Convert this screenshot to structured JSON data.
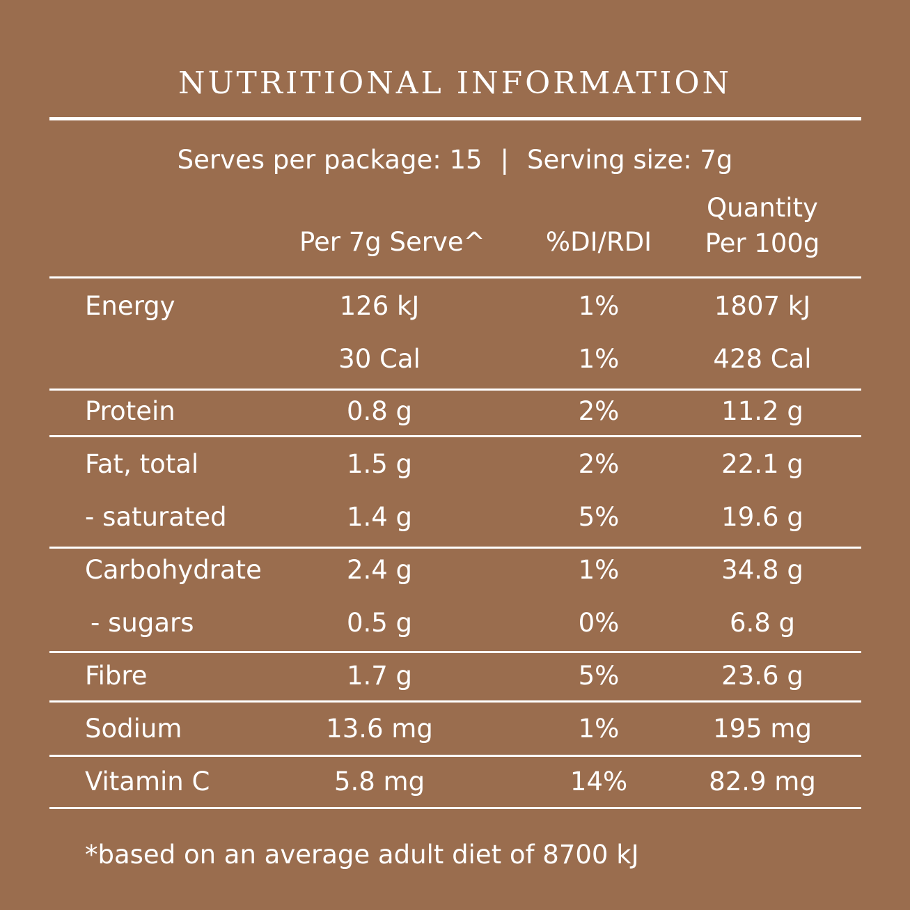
{
  "title": "NUTRITIONAL INFORMATION",
  "serving": {
    "serves": "Serves per package: 15",
    "separator": "|",
    "size": "Serving size: 7g"
  },
  "headers": {
    "per_serve": "Per 7g Serve^",
    "rdi": "%DI/RDI",
    "per100_line1": "Quantity",
    "per100_line2": "Per 100g"
  },
  "rows": [
    {
      "label": "Energy",
      "serve": "126 kJ",
      "rdi": "1%",
      "per100": "1807 kJ"
    },
    {
      "label": "",
      "serve": "30 Cal",
      "rdi": "1%",
      "per100": "428 Cal"
    },
    {
      "label": "Protein",
      "serve": "0.8 g",
      "rdi": "2%",
      "per100": "11.2 g"
    },
    {
      "label": "Fat, total",
      "serve": "1.5 g",
      "rdi": "2%",
      "per100": "22.1 g"
    },
    {
      "label": "- saturated",
      "serve": "1.4 g",
      "rdi": "5%",
      "per100": "19.6 g"
    },
    {
      "label": "Carbohydrate",
      "serve": "2.4 g",
      "rdi": "1%",
      "per100": "34.8 g"
    },
    {
      "label": " - sugars",
      "serve": "0.5 g",
      "rdi": "0%",
      "per100": "6.8 g"
    },
    {
      "label": "Fibre",
      "serve": "1.7 g",
      "rdi": "5%",
      "per100": "23.6 g"
    },
    {
      "label": "Sodium",
      "serve": "13.6 mg",
      "rdi": "1%",
      "per100": "195 mg"
    },
    {
      "label": "Vitamin C",
      "serve": "5.8 mg",
      "rdi": "14%",
      "per100": "82.9 mg"
    }
  ],
  "footnote": "*based on an average adult diet of 8700 kJ"
}
